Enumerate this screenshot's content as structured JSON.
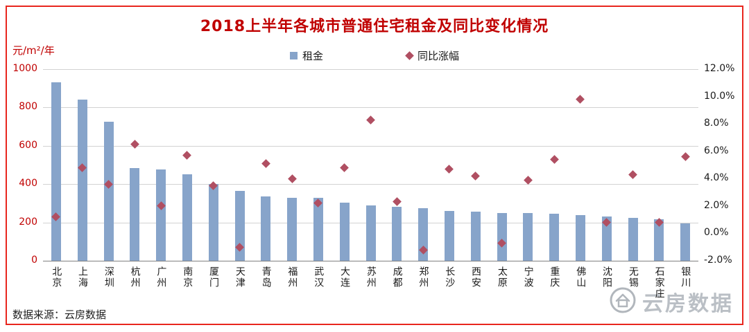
{
  "chart": {
    "title": "2018上半年各城市普通住宅租金及同比变化情况",
    "left_axis_unit": "元/m²/年",
    "legend": [
      {
        "label": "租金"
      },
      {
        "label": "同比涨幅"
      }
    ]
  },
  "footer": {
    "source": "数据来源：云房数据",
    "logo_text": "云房数据"
  },
  "colors": {
    "frame_border": "#e8261d",
    "title_text": "#c00000",
    "left_axis_text": "#c00000",
    "bar": "#87a4ca",
    "diamond": "#b04f62",
    "gridline": "#d2d2d2",
    "axis_line": "#7f7f7f"
  },
  "chart_data": {
    "type": "bar",
    "title": "2018上半年各城市普通住宅租金及同比变化情况",
    "categories": [
      "北京",
      "上海",
      "深圳",
      "杭州",
      "广州",
      "南京",
      "厦门",
      "天津",
      "青岛",
      "福州",
      "武汉",
      "大连",
      "苏州",
      "成都",
      "郑州",
      "长沙",
      "西安",
      "太原",
      "宁波",
      "重庆",
      "佛山",
      "沈阳",
      "无锡",
      "石家庄",
      "银川"
    ],
    "series": [
      {
        "name": "租金",
        "type": "bar",
        "axis": "left",
        "unit": "元/m²/年",
        "values": [
          930,
          840,
          725,
          485,
          475,
          450,
          400,
          365,
          335,
          330,
          330,
          305,
          290,
          280,
          275,
          260,
          255,
          250,
          250,
          245,
          240,
          230,
          225,
          215,
          195
        ]
      },
      {
        "name": "同比涨幅",
        "type": "scatter",
        "axis": "right",
        "unit": "%",
        "values": [
          1.2,
          4.8,
          3.6,
          6.5,
          2.0,
          5.7,
          3.5,
          -1.0,
          5.1,
          4.0,
          2.2,
          4.8,
          8.3,
          2.3,
          -1.2,
          4.7,
          4.2,
          -0.7,
          3.9,
          5.4,
          9.8,
          0.8,
          4.3,
          0.8,
          5.6
        ]
      }
    ],
    "left_axis": {
      "min": 0,
      "max": 1000,
      "ticks": [
        0,
        200,
        400,
        600,
        800,
        1000
      ]
    },
    "right_axis": {
      "min": -2,
      "max": 12,
      "ticks": [
        -2,
        0,
        2,
        4,
        6,
        8,
        10,
        12
      ],
      "tick_format": "one_decimal_percent"
    },
    "legend_position": "top",
    "grid": true
  }
}
